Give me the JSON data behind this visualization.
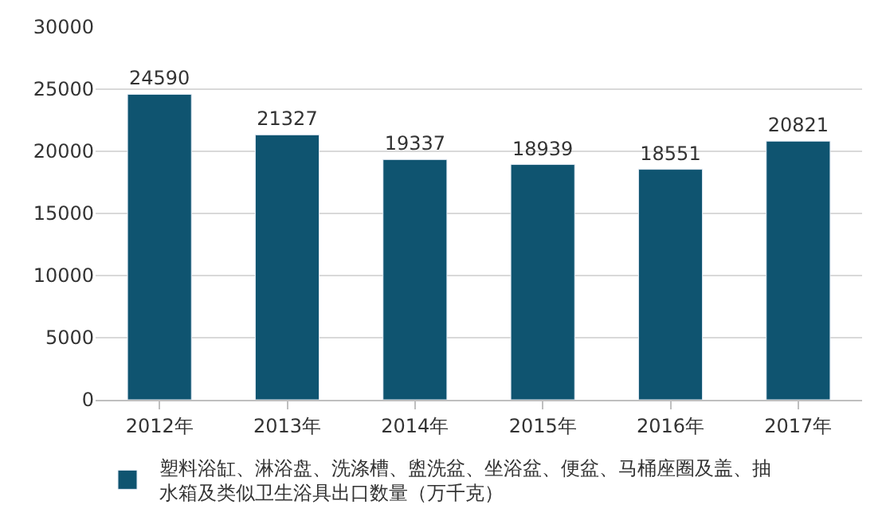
{
  "chart_data": {
    "type": "bar",
    "categories": [
      "2012年",
      "2013年",
      "2014年",
      "2015年",
      "2016年",
      "2017年"
    ],
    "series": [
      {
        "name": "塑料浴缸、淋浴盘、洗涤槽、盥洗盆、坐浴盆、便盆、马桶座圈及盖、抽水箱及类似卫生浴具出口数量（万千克）",
        "color": "#0f5470",
        "values": [
          24590,
          21327,
          19337,
          18939,
          18551,
          20821
        ]
      }
    ],
    "ylim": [
      0,
      30000
    ],
    "yticks": [
      0,
      5000,
      10000,
      15000,
      20000,
      25000,
      30000
    ],
    "grid": "y",
    "legend": "bottom",
    "data_labels": true
  }
}
